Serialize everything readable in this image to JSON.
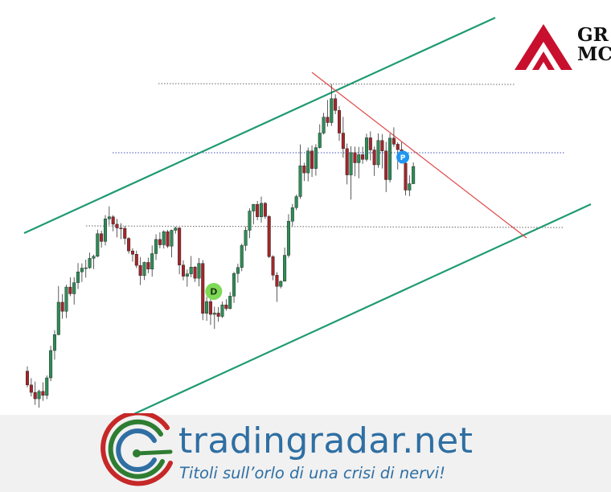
{
  "chart_data": {
    "type": "candlestick",
    "ylim": [
      0,
      100
    ],
    "x_count": 100,
    "grid": false,
    "candles": [
      [
        13.9,
        15.3,
        9.1,
        9.8
      ],
      [
        9.8,
        11.8,
        6.4,
        7.6
      ],
      [
        7.6,
        10.8,
        3.9,
        5.7
      ],
      [
        5.7,
        8.4,
        3.1,
        7.9
      ],
      [
        7.9,
        10.6,
        5.1,
        6.7
      ],
      [
        6.7,
        12.6,
        5.6,
        11.9
      ],
      [
        11.9,
        21.4,
        10.9,
        20.0
      ],
      [
        20.0,
        26.0,
        17.3,
        24.7
      ],
      [
        24.7,
        39.1,
        24.5,
        34.3
      ],
      [
        34.3,
        36.7,
        29.4,
        31.6
      ],
      [
        31.6,
        39.5,
        29.6,
        38.8
      ],
      [
        38.8,
        41.7,
        36.1,
        36.8
      ],
      [
        36.8,
        41.7,
        33.6,
        40.1
      ],
      [
        40.1,
        45.9,
        38.2,
        43.3
      ],
      [
        43.3,
        45.8,
        40.3,
        44.4
      ],
      [
        44.4,
        46.9,
        41.6,
        44.5
      ],
      [
        44.5,
        49.0,
        44.2,
        47.3
      ],
      [
        47.3,
        48.4,
        44.1,
        47.9
      ],
      [
        47.9,
        55.8,
        47.6,
        54.6
      ],
      [
        54.6,
        55.5,
        50.5,
        52.3
      ],
      [
        52.3,
        60.1,
        51.1,
        59.0
      ],
      [
        59.0,
        62.7,
        57.2,
        59.6
      ],
      [
        59.6,
        60.1,
        55.3,
        57.4
      ],
      [
        57.4,
        59.0,
        53.5,
        56.3
      ],
      [
        56.3,
        57.7,
        53.0,
        56.2
      ],
      [
        56.2,
        56.9,
        51.4,
        53.2
      ],
      [
        53.2,
        53.6,
        48.7,
        49.5
      ],
      [
        49.5,
        50.3,
        46.3,
        48.5
      ],
      [
        48.5,
        49.6,
        44.4,
        45.2
      ],
      [
        45.2,
        47.7,
        39.4,
        42.2
      ],
      [
        42.2,
        46.3,
        40.9,
        46.1
      ],
      [
        46.1,
        47.5,
        42.9,
        44.1
      ],
      [
        44.1,
        51.1,
        41.9,
        48.7
      ],
      [
        48.7,
        54.4,
        46.8,
        52.9
      ],
      [
        52.9,
        55.0,
        50.3,
        51.3
      ],
      [
        51.3,
        55.6,
        50.2,
        55.2
      ],
      [
        55.2,
        55.7,
        50.4,
        50.9
      ],
      [
        50.9,
        55.8,
        47.6,
        55.6
      ],
      [
        55.6,
        56.7,
        54.6,
        56.3
      ],
      [
        56.3,
        56.5,
        42.6,
        45.3
      ],
      [
        45.3,
        46.7,
        40.8,
        42.0
      ],
      [
        42.0,
        44.0,
        38.9,
        42.7
      ],
      [
        42.7,
        48.0,
        41.7,
        44.7
      ],
      [
        44.7,
        45.0,
        40.3,
        41.4
      ],
      [
        41.4,
        47.4,
        39.0,
        45.8
      ],
      [
        45.8,
        46.8,
        29.0,
        31.0
      ],
      [
        31.0,
        35.9,
        28.8,
        34.5
      ],
      [
        34.5,
        35.8,
        27.6,
        30.7
      ],
      [
        30.7,
        33.0,
        26.4,
        31.1
      ],
      [
        31.1,
        32.9,
        28.5,
        30.1
      ],
      [
        30.1,
        34.5,
        29.6,
        33.5
      ],
      [
        33.5,
        35.2,
        31.8,
        32.4
      ],
      [
        32.4,
        37.3,
        32.2,
        36.1
      ],
      [
        36.1,
        43.3,
        34.1,
        42.8
      ],
      [
        42.8,
        45.7,
        40.1,
        44.6
      ],
      [
        44.6,
        51.7,
        43.5,
        51.1
      ],
      [
        51.1,
        56.7,
        49.5,
        55.6
      ],
      [
        55.6,
        62.1,
        53.3,
        61.3
      ],
      [
        61.3,
        63.4,
        57.4,
        63.3
      ],
      [
        63.3,
        64.3,
        58.6,
        59.6
      ],
      [
        59.6,
        65.6,
        57.9,
        63.6
      ],
      [
        63.6,
        64.0,
        59.0,
        59.7
      ],
      [
        59.7,
        60.1,
        47.4,
        47.8
      ],
      [
        47.8,
        48.2,
        40.8,
        42.3
      ],
      [
        42.3,
        43.2,
        34.4,
        39.0
      ],
      [
        39.0,
        40.7,
        38.4,
        40.5
      ],
      [
        40.5,
        50.5,
        40.5,
        48.2
      ],
      [
        48.2,
        60.4,
        47.5,
        58.3
      ],
      [
        58.3,
        63.4,
        56.8,
        62.3
      ],
      [
        62.3,
        66.2,
        61.6,
        65.6
      ],
      [
        65.6,
        81.0,
        64.9,
        74.7
      ],
      [
        74.7,
        75.6,
        70.2,
        72.6
      ],
      [
        72.6,
        80.1,
        70.1,
        79.1
      ],
      [
        79.1,
        80.7,
        71.4,
        73.9
      ],
      [
        73.9,
        81.1,
        71.8,
        80.1
      ],
      [
        80.1,
        87.0,
        79.8,
        84.4
      ],
      [
        84.4,
        90.4,
        84.0,
        89.1
      ],
      [
        89.1,
        94.2,
        86.3,
        87.5
      ],
      [
        87.5,
        98.9,
        86.5,
        94.6
      ],
      [
        94.6,
        95.9,
        90.0,
        91.1
      ],
      [
        91.1,
        92.4,
        82.1,
        84.4
      ],
      [
        84.4,
        89.2,
        77.1,
        79.8
      ],
      [
        79.8,
        81.3,
        69.2,
        72.0
      ],
      [
        72.0,
        80.5,
        64.7,
        78.6
      ],
      [
        78.6,
        80.4,
        71.6,
        75.6
      ],
      [
        75.6,
        80.3,
        71.0,
        78.0
      ],
      [
        78.0,
        80.4,
        75.3,
        76.6
      ],
      [
        76.6,
        84.2,
        76.0,
        83.0
      ],
      [
        83.0,
        84.9,
        76.3,
        79.4
      ],
      [
        79.4,
        80.4,
        71.7,
        75.0
      ],
      [
        75.0,
        84.3,
        74.1,
        82.2
      ],
      [
        82.2,
        84.1,
        73.9,
        79.1
      ],
      [
        79.1,
        81.8,
        66.9,
        70.6
      ],
      [
        70.6,
        84.3,
        69.8,
        82.9
      ],
      [
        82.9,
        86.1,
        80.3,
        81.1
      ],
      [
        81.1,
        81.7,
        73.6,
        79.5
      ],
      [
        79.5,
        81.7,
        75.4,
        75.5
      ],
      [
        75.5,
        76.6,
        65.9,
        67.5
      ],
      [
        67.5,
        71.9,
        65.7,
        69.4
      ],
      [
        69.4,
        75.7,
        69.3,
        74.5
      ]
    ],
    "markers": [
      {
        "label": "D",
        "x": 47.8,
        "y": 37.5,
        "color": "#7ed957"
      },
      {
        "label": "P",
        "x": 96.3,
        "y": 77.3,
        "color": "#2196f3"
      }
    ],
    "colors": {
      "up": "#2e8b57",
      "down": "#a0262b",
      "channel": "#1f9a73",
      "downtrend": "#e04848",
      "dotted_gray": "#666666",
      "dotted_blue": "#3f51b5"
    }
  },
  "brand": {
    "name": "tradingradar.net",
    "tagline": "Titoli sull’orlo di una crisi di nervi!",
    "name_color": "#2f6fa3",
    "tagline_color": "#2f6fa3",
    "logo_colors": [
      "#c62828",
      "#2e7d32",
      "#2f6fa3"
    ]
  },
  "company_logo": {
    "line1": "GR",
    "line2": "MC",
    "mark_color": "#c8102e"
  }
}
